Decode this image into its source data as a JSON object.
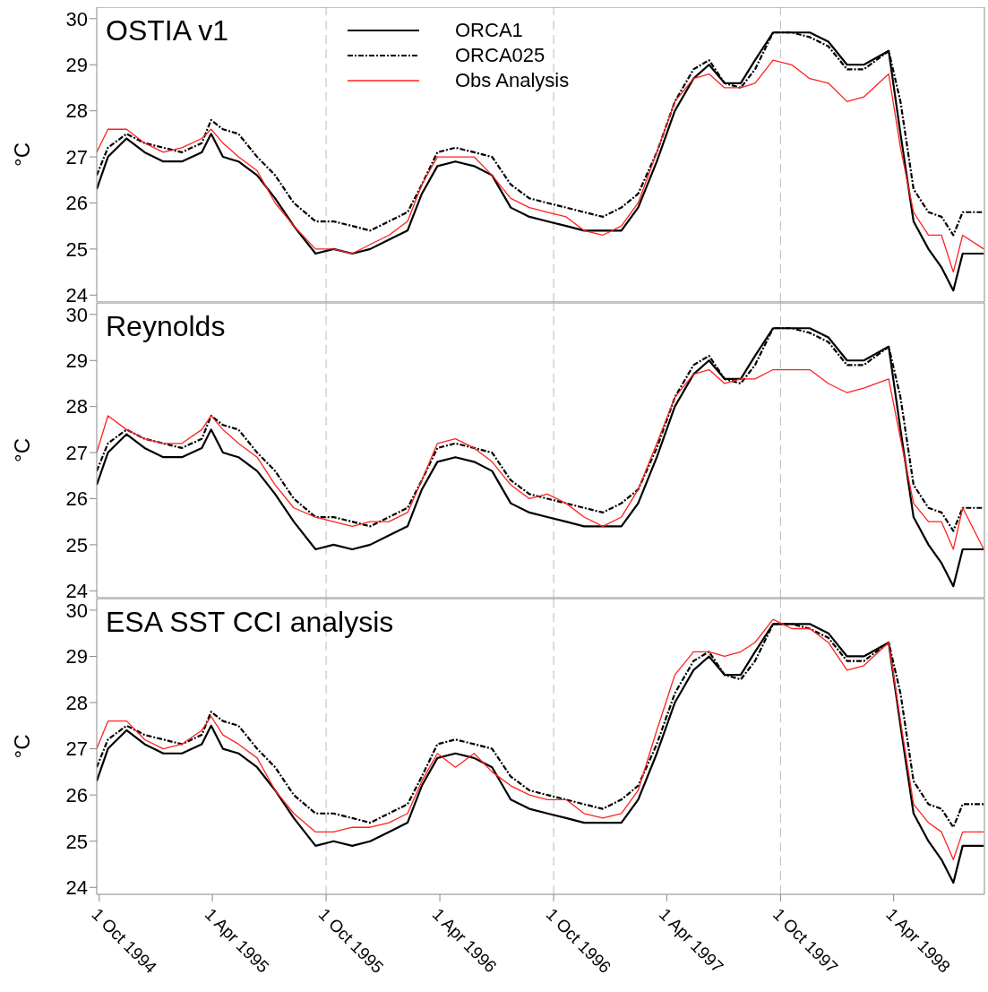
{
  "chart_data": [
    {
      "type": "line",
      "title": "OSTIA v1",
      "ylabel": "°C",
      "legend": "top",
      "tick_labels": "y",
      "marker": "none",
      "x": [
        "1994-09-27",
        "1994-10-15",
        "1994-11-14",
        "1994-12-13",
        "1995-01-12",
        "1995-02-11",
        "1995-03-15",
        "1995-03-30",
        "1995-04-18",
        "1995-05-13",
        "1995-06-12",
        "1995-07-11",
        "1995-08-10",
        "1995-09-14",
        "1995-10-13",
        "1995-11-12",
        "1995-12-11",
        "1996-01-10",
        "1996-02-09",
        "1996-03-03",
        "1996-03-28",
        "1996-04-26",
        "1996-05-26",
        "1996-06-24",
        "1996-07-24",
        "1996-08-23",
        "1996-09-21",
        "1996-10-21",
        "1996-11-19",
        "1996-12-19",
        "1997-01-18",
        "1997-02-14",
        "1997-03-16",
        "1997-04-14",
        "1997-05-14",
        "1997-06-08",
        "1997-07-03",
        "1997-07-29",
        "1997-08-21",
        "1997-09-19",
        "1997-10-19",
        "1997-11-17",
        "1997-12-17",
        "1998-01-16",
        "1998-02-12",
        "1998-03-24",
        "1998-04-12",
        "1998-05-03",
        "1998-05-27",
        "1998-06-17",
        "1998-07-06",
        "1998-07-21",
        "1998-08-24"
      ],
      "xlim": [
        "1994-09-27",
        "1998-08-25"
      ],
      "xticks": [
        {
          "value": "1994-10-01",
          "label": null
        },
        {
          "value": "1995-04-01",
          "label": null
        },
        {
          "value": "1995-10-01",
          "label": null
        },
        {
          "value": "1996-04-01",
          "label": null
        },
        {
          "value": "1996-10-01",
          "label": null
        },
        {
          "value": "1997-04-01",
          "label": null
        },
        {
          "value": "1997-10-01",
          "label": null
        },
        {
          "value": "1998-04-01",
          "label": null
        }
      ],
      "ylim": [
        23.85,
        30.25
      ],
      "yticks": [
        24,
        25,
        26,
        27,
        28,
        29,
        30
      ],
      "ref_lines": [
        {
          "axis": "x",
          "value": "1995-10-01",
          "color": "#bbbbbb",
          "line_style": "dashed"
        },
        {
          "axis": "x",
          "value": "1996-10-01",
          "color": "#bbbbbb",
          "line_style": "dashed"
        },
        {
          "axis": "x",
          "value": "1997-10-01",
          "color": "#bbbbbb",
          "line_style": "dashed"
        }
      ],
      "series": [
        {
          "name": "ORCA1",
          "color": "#000000",
          "line_style": "solid",
          "values": [
            26.3,
            27.0,
            27.4,
            27.1,
            26.9,
            26.9,
            27.1,
            27.5,
            27.0,
            26.9,
            26.6,
            26.1,
            25.5,
            24.9,
            25.0,
            24.9,
            25.0,
            25.2,
            25.4,
            26.2,
            26.8,
            26.9,
            26.8,
            26.6,
            25.9,
            25.7,
            25.6,
            25.5,
            25.4,
            25.4,
            25.4,
            25.9,
            26.9,
            28.0,
            28.7,
            29.0,
            28.6,
            28.6,
            29.1,
            29.7,
            29.7,
            29.7,
            29.5,
            29.0,
            29.0,
            29.3,
            27.5,
            25.6,
            25.0,
            24.6,
            24.1,
            24.9,
            24.9
          ]
        },
        {
          "name": "ORCA025",
          "color": "#000000",
          "line_style": "dashed",
          "values": [
            26.6,
            27.2,
            27.5,
            27.3,
            27.2,
            27.1,
            27.3,
            27.8,
            27.6,
            27.5,
            27.0,
            26.6,
            26.0,
            25.6,
            25.6,
            25.5,
            25.4,
            25.6,
            25.8,
            26.4,
            27.1,
            27.2,
            27.1,
            27.0,
            26.4,
            26.1,
            26.0,
            25.9,
            25.8,
            25.7,
            25.9,
            26.2,
            27.1,
            28.2,
            28.9,
            29.1,
            28.6,
            28.5,
            28.9,
            29.7,
            29.7,
            29.6,
            29.4,
            28.9,
            28.9,
            29.3,
            28.2,
            26.3,
            25.8,
            25.7,
            25.3,
            25.8,
            25.8
          ]
        },
        {
          "name": "Obs Analysis",
          "color": "#ff2020",
          "line_style": "solid",
          "values": [
            27.1,
            27.6,
            27.6,
            27.3,
            27.1,
            27.2,
            27.4,
            27.6,
            27.3,
            27.0,
            26.7,
            26.0,
            25.5,
            25.0,
            25.0,
            24.9,
            25.1,
            25.3,
            25.6,
            26.4,
            27.0,
            27.0,
            27.0,
            26.6,
            26.1,
            25.9,
            25.8,
            25.7,
            25.4,
            25.3,
            25.5,
            26.0,
            27.1,
            28.2,
            28.7,
            28.8,
            28.5,
            28.5,
            28.6,
            29.1,
            29.0,
            28.7,
            28.6,
            28.2,
            28.3,
            28.8,
            27.2,
            25.8,
            25.3,
            25.3,
            24.5,
            25.3,
            25.0
          ]
        }
      ]
    },
    {
      "type": "line",
      "title": "Reynolds",
      "ylabel": "°C",
      "tick_labels": "y",
      "marker": "none",
      "x": [
        "1994-09-27",
        "1994-10-15",
        "1994-11-14",
        "1994-12-13",
        "1995-01-12",
        "1995-02-11",
        "1995-03-15",
        "1995-03-30",
        "1995-04-18",
        "1995-05-13",
        "1995-06-12",
        "1995-07-11",
        "1995-08-10",
        "1995-09-14",
        "1995-10-13",
        "1995-11-12",
        "1995-12-11",
        "1996-01-10",
        "1996-02-09",
        "1996-03-03",
        "1996-03-28",
        "1996-04-26",
        "1996-05-26",
        "1996-06-24",
        "1996-07-24",
        "1996-08-23",
        "1996-09-21",
        "1996-10-21",
        "1996-11-19",
        "1996-12-19",
        "1997-01-18",
        "1997-02-14",
        "1997-03-16",
        "1997-04-14",
        "1997-05-14",
        "1997-06-08",
        "1997-07-03",
        "1997-07-29",
        "1997-08-21",
        "1997-09-19",
        "1997-10-19",
        "1997-11-17",
        "1997-12-17",
        "1998-01-16",
        "1998-02-12",
        "1998-03-24",
        "1998-04-12",
        "1998-05-03",
        "1998-05-27",
        "1998-06-17",
        "1998-07-06",
        "1998-07-21",
        "1998-08-24"
      ],
      "xlim": [
        "1994-09-27",
        "1998-08-25"
      ],
      "xticks": [
        {
          "value": "1994-10-01",
          "label": null
        },
        {
          "value": "1995-04-01",
          "label": null
        },
        {
          "value": "1995-10-01",
          "label": null
        },
        {
          "value": "1996-04-01",
          "label": null
        },
        {
          "value": "1996-10-01",
          "label": null
        },
        {
          "value": "1997-04-01",
          "label": null
        },
        {
          "value": "1997-10-01",
          "label": null
        },
        {
          "value": "1998-04-01",
          "label": null
        }
      ],
      "ylim": [
        23.85,
        30.25
      ],
      "yticks": [
        24,
        25,
        26,
        27,
        28,
        29,
        30
      ],
      "ref_lines": [
        {
          "axis": "x",
          "value": "1995-10-01",
          "color": "#bbbbbb",
          "line_style": "dashed"
        },
        {
          "axis": "x",
          "value": "1996-10-01",
          "color": "#bbbbbb",
          "line_style": "dashed"
        },
        {
          "axis": "x",
          "value": "1997-10-01",
          "color": "#bbbbbb",
          "line_style": "dashed"
        }
      ],
      "series": [
        {
          "color": "#000000",
          "line_style": "solid",
          "values": [
            26.3,
            27.0,
            27.4,
            27.1,
            26.9,
            26.9,
            27.1,
            27.5,
            27.0,
            26.9,
            26.6,
            26.1,
            25.5,
            24.9,
            25.0,
            24.9,
            25.0,
            25.2,
            25.4,
            26.2,
            26.8,
            26.9,
            26.8,
            26.6,
            25.9,
            25.7,
            25.6,
            25.5,
            25.4,
            25.4,
            25.4,
            25.9,
            26.9,
            28.0,
            28.7,
            29.0,
            28.6,
            28.6,
            29.1,
            29.7,
            29.7,
            29.7,
            29.5,
            29.0,
            29.0,
            29.3,
            27.5,
            25.6,
            25.0,
            24.6,
            24.1,
            24.9,
            24.9
          ]
        },
        {
          "color": "#000000",
          "line_style": "dashed",
          "values": [
            26.6,
            27.2,
            27.5,
            27.3,
            27.2,
            27.1,
            27.3,
            27.8,
            27.6,
            27.5,
            27.0,
            26.6,
            26.0,
            25.6,
            25.6,
            25.5,
            25.4,
            25.6,
            25.8,
            26.4,
            27.1,
            27.2,
            27.1,
            27.0,
            26.4,
            26.1,
            26.0,
            25.9,
            25.8,
            25.7,
            25.9,
            26.2,
            27.1,
            28.2,
            28.9,
            29.1,
            28.6,
            28.5,
            28.9,
            29.7,
            29.7,
            29.6,
            29.4,
            28.9,
            28.9,
            29.3,
            28.2,
            26.3,
            25.8,
            25.7,
            25.3,
            25.8,
            25.8
          ]
        },
        {
          "color": "#ff2020",
          "line_style": "solid",
          "values": [
            27.0,
            27.8,
            27.5,
            27.3,
            27.2,
            27.2,
            27.5,
            27.8,
            27.5,
            27.2,
            26.9,
            26.3,
            25.8,
            25.6,
            25.5,
            25.4,
            25.5,
            25.5,
            25.7,
            26.4,
            27.2,
            27.3,
            27.1,
            26.8,
            26.3,
            26.0,
            26.1,
            25.9,
            25.6,
            25.4,
            25.6,
            26.2,
            27.2,
            28.2,
            28.7,
            28.8,
            28.5,
            28.6,
            28.6,
            28.8,
            28.8,
            28.8,
            28.5,
            28.3,
            28.4,
            28.6,
            27.3,
            25.9,
            25.5,
            25.5,
            24.9,
            25.8,
            24.9
          ]
        }
      ]
    },
    {
      "type": "line",
      "title": "ESA SST CCI analysis",
      "ylabel": "°C",
      "marker": "none",
      "x": [
        "1994-09-27",
        "1994-10-15",
        "1994-11-14",
        "1994-12-13",
        "1995-01-12",
        "1995-02-11",
        "1995-03-15",
        "1995-03-30",
        "1995-04-18",
        "1995-05-13",
        "1995-06-12",
        "1995-07-11",
        "1995-08-10",
        "1995-09-14",
        "1995-10-13",
        "1995-11-12",
        "1995-12-11",
        "1996-01-10",
        "1996-02-09",
        "1996-03-03",
        "1996-03-28",
        "1996-04-26",
        "1996-05-26",
        "1996-06-24",
        "1996-07-24",
        "1996-08-23",
        "1996-09-21",
        "1996-10-21",
        "1996-11-19",
        "1996-12-19",
        "1997-01-18",
        "1997-02-14",
        "1997-03-16",
        "1997-04-14",
        "1997-05-14",
        "1997-06-08",
        "1997-07-03",
        "1997-07-29",
        "1997-08-21",
        "1997-09-19",
        "1997-10-19",
        "1997-11-17",
        "1997-12-17",
        "1998-01-16",
        "1998-02-12",
        "1998-03-24",
        "1998-04-12",
        "1998-05-03",
        "1998-05-27",
        "1998-06-17",
        "1998-07-06",
        "1998-07-21",
        "1998-08-24"
      ],
      "xlim": [
        "1994-09-27",
        "1998-08-25"
      ],
      "xticks": [
        {
          "value": "1994-10-01",
          "label": "1 Oct 1994"
        },
        {
          "value": "1995-04-01",
          "label": "1 Apr 1995"
        },
        {
          "value": "1995-10-01",
          "label": "1 Oct 1995"
        },
        {
          "value": "1996-04-01",
          "label": "1 Apr 1996"
        },
        {
          "value": "1996-10-01",
          "label": "1 Oct 1996"
        },
        {
          "value": "1997-04-01",
          "label": "1 Apr 1997"
        },
        {
          "value": "1997-10-01",
          "label": "1 Oct 1997"
        },
        {
          "value": "1998-04-01",
          "label": "1 Apr 1998"
        }
      ],
      "ylim": [
        23.85,
        30.25
      ],
      "yticks": [
        24,
        25,
        26,
        27,
        28,
        29,
        30
      ],
      "ref_lines": [
        {
          "axis": "x",
          "value": "1995-10-01",
          "color": "#bbbbbb",
          "line_style": "dashed"
        },
        {
          "axis": "x",
          "value": "1996-10-01",
          "color": "#bbbbbb",
          "line_style": "dashed"
        },
        {
          "axis": "x",
          "value": "1997-10-01",
          "color": "#bbbbbb",
          "line_style": "dashed"
        }
      ],
      "series": [
        {
          "color": "#000000",
          "line_style": "solid",
          "values": [
            26.3,
            27.0,
            27.4,
            27.1,
            26.9,
            26.9,
            27.1,
            27.5,
            27.0,
            26.9,
            26.6,
            26.1,
            25.5,
            24.9,
            25.0,
            24.9,
            25.0,
            25.2,
            25.4,
            26.2,
            26.8,
            26.9,
            26.8,
            26.6,
            25.9,
            25.7,
            25.6,
            25.5,
            25.4,
            25.4,
            25.4,
            25.9,
            26.9,
            28.0,
            28.7,
            29.0,
            28.6,
            28.6,
            29.1,
            29.7,
            29.7,
            29.7,
            29.5,
            29.0,
            29.0,
            29.3,
            27.5,
            25.6,
            25.0,
            24.6,
            24.1,
            24.9,
            24.9
          ]
        },
        {
          "color": "#000000",
          "line_style": "dashed",
          "values": [
            26.6,
            27.2,
            27.5,
            27.3,
            27.2,
            27.1,
            27.3,
            27.8,
            27.6,
            27.5,
            27.0,
            26.6,
            26.0,
            25.6,
            25.6,
            25.5,
            25.4,
            25.6,
            25.8,
            26.4,
            27.1,
            27.2,
            27.1,
            27.0,
            26.4,
            26.1,
            26.0,
            25.9,
            25.8,
            25.7,
            25.9,
            26.2,
            27.1,
            28.2,
            28.9,
            29.1,
            28.6,
            28.5,
            28.9,
            29.7,
            29.7,
            29.6,
            29.4,
            28.9,
            28.9,
            29.3,
            28.2,
            26.3,
            25.8,
            25.7,
            25.3,
            25.8,
            25.8
          ]
        },
        {
          "color": "#ff2020",
          "line_style": "solid",
          "values": [
            27.0,
            27.6,
            27.6,
            27.2,
            27.0,
            27.1,
            27.4,
            27.7,
            27.3,
            27.1,
            26.8,
            26.1,
            25.6,
            25.2,
            25.2,
            25.3,
            25.3,
            25.4,
            25.6,
            26.3,
            26.9,
            26.6,
            26.9,
            26.5,
            26.2,
            26.0,
            25.9,
            25.9,
            25.6,
            25.5,
            25.6,
            26.1,
            27.4,
            28.6,
            29.1,
            29.1,
            29.0,
            29.1,
            29.3,
            29.8,
            29.6,
            29.6,
            29.3,
            28.7,
            28.8,
            29.3,
            27.6,
            25.8,
            25.4,
            25.2,
            24.6,
            25.2,
            25.2
          ]
        }
      ]
    }
  ]
}
